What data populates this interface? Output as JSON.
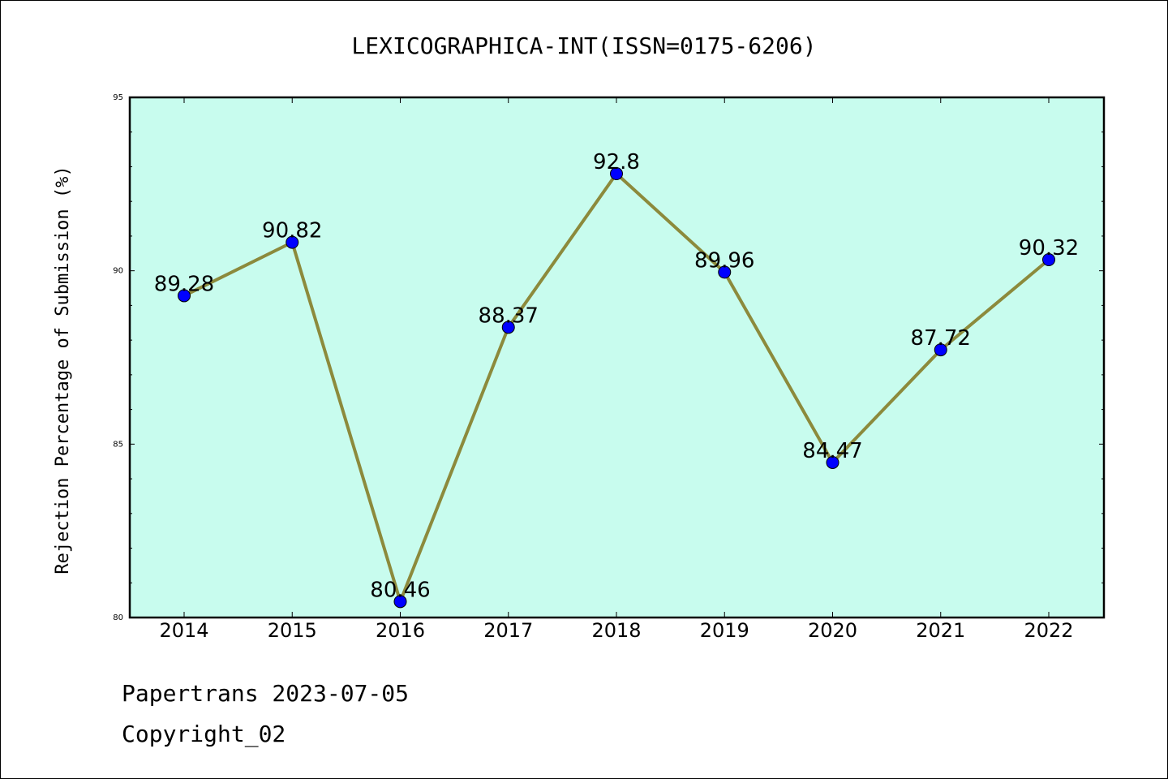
{
  "chart_data": {
    "type": "line",
    "title": "LEXICOGRAPHICA-INT(ISSN=0175-6206)",
    "xlabel": "",
    "ylabel": "Rejection Percentage of Submission (%)",
    "categories": [
      "2014",
      "2015",
      "2016",
      "2017",
      "2018",
      "2019",
      "2020",
      "2021",
      "2022"
    ],
    "series": [
      {
        "values": [
          89.28,
          90.82,
          80.46,
          88.37,
          92.8,
          89.96,
          84.47,
          87.72,
          90.32
        ],
        "labels": [
          "89.28",
          "90.82",
          "80.46",
          "88.37",
          "92.8",
          "89.96",
          "84.47",
          "87.72",
          "90.32"
        ]
      }
    ],
    "ylim": [
      80,
      95
    ],
    "yticks": [
      "80",
      "85",
      "90",
      "95"
    ],
    "grid": false,
    "colors": {
      "plot_background": "#c8fcee",
      "line": "#8c8a3c",
      "marker": "#0000ff"
    }
  },
  "footer": {
    "line1": "Papertrans 2023-07-05",
    "line2": "Copyright_02"
  }
}
